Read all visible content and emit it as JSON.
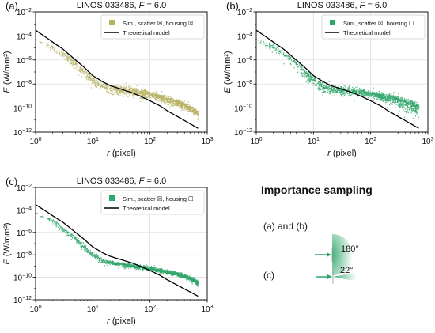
{
  "figure": {
    "colors": {
      "olive": "#b7b164",
      "green": "#2fa66a",
      "model": "#000000",
      "arrow": "#2fa66a"
    }
  },
  "chart_data": [
    {
      "panel": "(a)",
      "type": "scatter",
      "title_prefix": "LINOS 033486, ",
      "title_var": "F",
      "title_suffix": " = 6.0",
      "xlabel_var": "r",
      "xlabel_unit": " (pixel)",
      "ylabel_var": "E",
      "ylabel_unit": " (W/mm²)",
      "x_scale": "log",
      "y_scale": "log",
      "xlim": [
        1,
        1000
      ],
      "ylim": [
        1e-12,
        0.01
      ],
      "x_ticks": [
        {
          "base": "10",
          "exp": "0"
        },
        {
          "base": "10",
          "exp": "1"
        },
        {
          "base": "10",
          "exp": "2"
        },
        {
          "base": "10",
          "exp": "3"
        }
      ],
      "y_ticks": [
        {
          "base": "10",
          "exp": "−12"
        },
        {
          "base": "10",
          "exp": "−10"
        },
        {
          "base": "10",
          "exp": "−8"
        },
        {
          "base": "10",
          "exp": "−6"
        },
        {
          "base": "10",
          "exp": "−4"
        },
        {
          "base": "10",
          "exp": "−2"
        }
      ],
      "grid": true,
      "legend_position": "top-right",
      "legend": [
        {
          "label": "Sim., scatter ☒, housing ☒",
          "color": "#b7b164",
          "kind": "square"
        },
        {
          "label": "Theoretical model",
          "color": "#000000",
          "kind": "line"
        }
      ],
      "series": [
        {
          "kind": "model",
          "x": [
            1,
            1.5,
            2,
            3,
            5,
            7,
            10,
            15,
            20,
            30,
            50,
            70,
            100,
            150,
            200,
            300,
            500,
            700
          ],
          "y": [
            0.0003,
            8e-05,
            3e-05,
            8e-06,
            1e-06,
            2.5e-07,
            5e-08,
            1.5e-08,
            7.5e-09,
            4e-09,
            1.8e-09,
            9e-10,
            4e-10,
            1.5e-10,
            6e-11,
            2e-11,
            5e-12,
            2e-12
          ]
        },
        {
          "kind": "sim",
          "color": "#b7b164",
          "x": [
            1,
            2,
            3,
            5,
            7,
            10,
            15,
            20,
            30,
            50,
            70,
            100,
            150,
            200,
            300,
            500,
            700
          ],
          "y_upper": [
            8e-05,
            3e-05,
            1e-05,
            2e-06,
            4e-07,
            8e-08,
            5e-08,
            3e-08,
            2e-08,
            1.2e-08,
            8e-09,
            5e-09,
            3e-09,
            2e-09,
            1e-09,
            4e-10,
            2e-10
          ],
          "y_center": [
            5e-05,
            1e-05,
            3e-06,
            5e-07,
            1e-07,
            2e-08,
            6e-09,
            4e-09,
            3e-09,
            2.5e-09,
            2e-09,
            1.5e-09,
            8e-10,
            5e-10,
            3e-10,
            1e-10,
            3e-11
          ],
          "y_lower": [
            2e-05,
            2e-06,
            5e-07,
            5e-08,
            1e-08,
            3e-09,
            8e-10,
            5e-10,
            4e-10,
            3e-10,
            2.5e-10,
            2e-10,
            1.2e-10,
            8e-11,
            5e-11,
            2e-11,
            6e-12
          ]
        }
      ]
    },
    {
      "panel": "(b)",
      "type": "scatter",
      "title_prefix": "LINOS 033486, ",
      "title_var": "F",
      "title_suffix": " = 6.0",
      "xlabel_var": "r",
      "xlabel_unit": " (pixel)",
      "ylabel_var": "E",
      "ylabel_unit": " (W/mm²)",
      "x_scale": "log",
      "y_scale": "log",
      "xlim": [
        1,
        1000
      ],
      "ylim": [
        1e-12,
        0.01
      ],
      "x_ticks": [
        {
          "base": "10",
          "exp": "0"
        },
        {
          "base": "10",
          "exp": "1"
        },
        {
          "base": "10",
          "exp": "2"
        },
        {
          "base": "10",
          "exp": "3"
        }
      ],
      "y_ticks": [
        {
          "base": "10",
          "exp": "−12"
        },
        {
          "base": "10",
          "exp": "−10"
        },
        {
          "base": "10",
          "exp": "−8"
        },
        {
          "base": "10",
          "exp": "−6"
        },
        {
          "base": "10",
          "exp": "−4"
        },
        {
          "base": "10",
          "exp": "−2"
        }
      ],
      "grid": true,
      "legend_position": "top-right",
      "legend": [
        {
          "label": "Sim., scatter ☒, housing ☐",
          "color": "#2fa66a",
          "kind": "square"
        },
        {
          "label": "Theoretical model",
          "color": "#000000",
          "kind": "line"
        }
      ],
      "series": [
        {
          "kind": "model",
          "x": [
            1,
            1.5,
            2,
            3,
            5,
            7,
            10,
            15,
            20,
            30,
            50,
            70,
            100,
            150,
            200,
            300,
            500,
            700
          ],
          "y": [
            0.0003,
            8e-05,
            3e-05,
            8e-06,
            1e-06,
            2.5e-07,
            5e-08,
            1.5e-08,
            7.5e-09,
            4e-09,
            1.8e-09,
            9e-10,
            4e-10,
            1.5e-10,
            6e-11,
            2e-11,
            5e-12,
            2e-12
          ]
        },
        {
          "kind": "sim",
          "color": "#2fa66a",
          "x": [
            1,
            2,
            3,
            5,
            7,
            10,
            15,
            20,
            30,
            50,
            70,
            100,
            150,
            200,
            300,
            500,
            700
          ],
          "y_upper": [
            8e-05,
            3e-05,
            1e-05,
            2e-06,
            4e-07,
            8e-08,
            3e-08,
            2e-08,
            1.5e-08,
            1e-08,
            8e-09,
            6e-09,
            4e-09,
            3e-09,
            2e-09,
            1e-09,
            5e-10
          ],
          "y_center": [
            5e-05,
            1e-05,
            3e-06,
            5e-07,
            1e-07,
            2e-08,
            5e-09,
            4e-09,
            3e-09,
            2.5e-09,
            2e-09,
            1.5e-09,
            1e-09,
            7e-10,
            5e-10,
            2e-10,
            1e-10
          ],
          "y_lower": [
            2e-05,
            2e-06,
            5e-07,
            5e-08,
            8e-09,
            2e-09,
            6e-10,
            5e-10,
            4e-10,
            3e-10,
            2.5e-10,
            2e-10,
            1.2e-10,
            8e-11,
            3e-11,
            5e-12,
            3e-12
          ]
        }
      ]
    },
    {
      "panel": "(c)",
      "type": "scatter",
      "title_prefix": "LINOS 033486, ",
      "title_var": "F",
      "title_suffix": " = 6.0",
      "xlabel_var": "r",
      "xlabel_unit": " (pixel)",
      "ylabel_var": "E",
      "ylabel_unit": " (W/mm²)",
      "x_scale": "log",
      "y_scale": "log",
      "xlim": [
        1,
        1000
      ],
      "ylim": [
        1e-12,
        0.01
      ],
      "x_ticks": [
        {
          "base": "10",
          "exp": "0"
        },
        {
          "base": "10",
          "exp": "1"
        },
        {
          "base": "10",
          "exp": "2"
        },
        {
          "base": "10",
          "exp": "3"
        }
      ],
      "y_ticks": [
        {
          "base": "10",
          "exp": "−12"
        },
        {
          "base": "10",
          "exp": "−10"
        },
        {
          "base": "10",
          "exp": "−8"
        },
        {
          "base": "10",
          "exp": "−6"
        },
        {
          "base": "10",
          "exp": "−4"
        },
        {
          "base": "10",
          "exp": "−2"
        }
      ],
      "grid": true,
      "legend_position": "top-right",
      "legend": [
        {
          "label": "Sim., scatter ☒, housing ☐",
          "color": "#2fa66a",
          "kind": "square"
        },
        {
          "label": "Theoretical model",
          "color": "#000000",
          "kind": "line"
        }
      ],
      "series": [
        {
          "kind": "model",
          "x": [
            1,
            1.5,
            2,
            3,
            5,
            7,
            10,
            15,
            20,
            30,
            50,
            70,
            100,
            150,
            200,
            300,
            500,
            700
          ],
          "y": [
            0.0003,
            8e-05,
            3e-05,
            8e-06,
            1e-06,
            2.5e-07,
            5e-08,
            1.5e-08,
            7.5e-09,
            4e-09,
            1.8e-09,
            9e-10,
            4e-10,
            1.5e-10,
            6e-11,
            2e-11,
            5e-12,
            2e-12
          ]
        },
        {
          "kind": "sim",
          "color": "#2fa66a",
          "x": [
            1,
            2,
            3,
            5,
            7,
            10,
            15,
            20,
            30,
            50,
            70,
            100,
            150,
            200,
            300,
            500,
            700
          ],
          "y_upper": [
            8e-05,
            2e-05,
            6e-06,
            1e-06,
            2e-07,
            3e-08,
            8e-09,
            5e-09,
            3e-09,
            2.5e-09,
            2e-09,
            1.5e-09,
            1e-09,
            7e-10,
            5e-10,
            2e-10,
            1e-10
          ],
          "y_center": [
            5e-05,
            1e-05,
            2e-06,
            3e-07,
            5e-08,
            1e-08,
            3e-09,
            2e-09,
            1.5e-09,
            1e-09,
            8e-10,
            6e-10,
            4e-10,
            3e-10,
            2e-10,
            8e-11,
            3e-11
          ],
          "y_lower": [
            2e-05,
            3e-06,
            5e-07,
            8e-08,
            1e-08,
            3e-09,
            1e-09,
            8e-10,
            6e-10,
            4e-10,
            3e-10,
            2.5e-10,
            1.5e-10,
            1e-10,
            7e-11,
            3e-11,
            1e-11
          ]
        }
      ]
    }
  ],
  "inset": {
    "heading": "Importance sampling",
    "items": [
      {
        "label": "(a) and (b)",
        "angle": "180°",
        "angle_deg": 180
      },
      {
        "label": "(c)",
        "angle": "22°",
        "angle_deg": 22
      }
    ]
  }
}
